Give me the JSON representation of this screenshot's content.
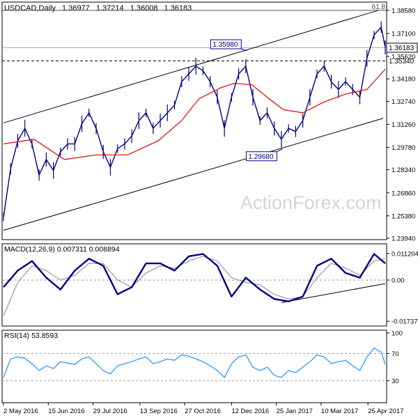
{
  "chart_data": [
    {
      "type": "line",
      "panel": "price",
      "header": {
        "symbol": "USDCAD,Daily",
        "open": "1.36977",
        "high": "1.37214",
        "low": "1.36008",
        "close": "1.36183"
      },
      "watermark": "ActionForex.com",
      "ylim": [
        1.2394,
        1.3898
      ],
      "y_ticks": [
        "1.38580",
        "1.37100",
        "1.35620",
        "1.34180",
        "1.32740",
        "1.31260",
        "1.29780",
        "1.28340",
        "1.26860",
        "1.25380",
        "1.23940"
      ],
      "x_ticks": [
        "2 May 2016",
        "15 Jun 2016",
        "29 Jul 2016",
        "13 Sep 2016",
        "27 Oct 2016",
        "12 Dec 2016",
        "25 Jan 2017",
        "10 Mar 2017",
        "25 Apr 2017"
      ],
      "last_price_label": "1.36183",
      "last_price": 1.36183,
      "support_label": "1.35340",
      "support_level": 1.3534,
      "fib_label": "61.8",
      "fib_level": 1.3858,
      "annotations": [
        {
          "label": "1.35980",
          "value": 1.3598,
          "date": "2016-12-27"
        },
        {
          "label": "1.29680",
          "value": 1.2968,
          "date": "2017-01-31"
        }
      ],
      "channel": {
        "upper": [
          [
            "2016-05-02",
            1.3135
          ],
          [
            "2017-05-05",
            1.3858
          ]
        ],
        "lower": [
          [
            "2016-05-02",
            1.2445
          ],
          [
            "2017-05-10",
            1.3165
          ]
        ]
      },
      "series": [
        {
          "kind": "close",
          "color": "#000080",
          "points": [
            [
              "2016-05-02",
              1.253
            ],
            [
              "2016-05-09",
              1.284
            ],
            [
              "2016-05-16",
              1.302
            ],
            [
              "2016-05-23",
              1.31
            ],
            [
              "2016-05-30",
              1.3
            ],
            [
              "2016-06-06",
              1.28
            ],
            [
              "2016-06-13",
              1.29
            ],
            [
              "2016-06-20",
              1.283
            ],
            [
              "2016-06-27",
              1.295
            ],
            [
              "2016-07-04",
              1.3
            ],
            [
              "2016-07-11",
              1.3
            ],
            [
              "2016-07-18",
              1.313
            ],
            [
              "2016-07-25",
              1.32
            ],
            [
              "2016-08-01",
              1.31
            ],
            [
              "2016-08-08",
              1.295
            ],
            [
              "2016-08-15",
              1.285
            ],
            [
              "2016-08-22",
              1.297
            ],
            [
              "2016-08-29",
              1.3
            ],
            [
              "2016-09-05",
              1.305
            ],
            [
              "2016-09-12",
              1.315
            ],
            [
              "2016-09-19",
              1.32
            ],
            [
              "2016-09-26",
              1.31
            ],
            [
              "2016-10-03",
              1.315
            ],
            [
              "2016-10-10",
              1.32
            ],
            [
              "2016-10-17",
              1.325
            ],
            [
              "2016-10-24",
              1.34
            ],
            [
              "2016-10-31",
              1.345
            ],
            [
              "2016-11-07",
              1.35
            ],
            [
              "2016-11-14",
              1.347
            ],
            [
              "2016-11-21",
              1.34
            ],
            [
              "2016-11-28",
              1.33
            ],
            [
              "2016-12-05",
              1.31
            ],
            [
              "2016-12-12",
              1.33
            ],
            [
              "2016-12-19",
              1.345
            ],
            [
              "2016-12-26",
              1.35
            ],
            [
              "2017-01-02",
              1.33
            ],
            [
              "2017-01-09",
              1.315
            ],
            [
              "2017-01-16",
              1.32
            ],
            [
              "2017-01-23",
              1.31
            ],
            [
              "2017-01-30",
              1.303
            ],
            [
              "2017-02-06",
              1.31
            ],
            [
              "2017-02-13",
              1.308
            ],
            [
              "2017-02-20",
              1.315
            ],
            [
              "2017-02-27",
              1.33
            ],
            [
              "2017-03-06",
              1.345
            ],
            [
              "2017-03-13",
              1.35
            ],
            [
              "2017-03-20",
              1.34
            ],
            [
              "2017-03-27",
              1.335
            ],
            [
              "2017-04-03",
              1.34
            ],
            [
              "2017-04-10",
              1.335
            ],
            [
              "2017-04-17",
              1.33
            ],
            [
              "2017-04-24",
              1.355
            ],
            [
              "2017-05-01",
              1.37
            ],
            [
              "2017-05-08",
              1.375
            ],
            [
              "2017-05-12",
              1.362
            ]
          ]
        },
        {
          "kind": "moving-average",
          "color": "#dd0000",
          "points": [
            [
              "2016-05-02",
              1.3
            ],
            [
              "2016-06-01",
              1.303
            ],
            [
              "2016-07-01",
              1.29
            ],
            [
              "2016-08-01",
              1.293
            ],
            [
              "2016-09-01",
              1.293
            ],
            [
              "2016-10-01",
              1.302
            ],
            [
              "2016-10-24",
              1.315
            ],
            [
              "2016-11-10",
              1.329
            ],
            [
              "2016-12-01",
              1.336
            ],
            [
              "2016-12-15",
              1.339
            ],
            [
              "2017-01-01",
              1.338
            ],
            [
              "2017-01-16",
              1.33
            ],
            [
              "2017-02-01",
              1.322
            ],
            [
              "2017-02-20",
              1.32
            ],
            [
              "2017-03-13",
              1.327
            ],
            [
              "2017-04-03",
              1.332
            ],
            [
              "2017-04-24",
              1.335
            ],
            [
              "2017-05-12",
              1.348
            ]
          ]
        }
      ]
    },
    {
      "type": "line",
      "panel": "macd",
      "label": "MACD(12,26,9) 0.007311 0.008894",
      "ylim": [
        -0.0185,
        0.0135
      ],
      "y_ticks": [
        "0.011204",
        "0.00",
        "-0.017371"
      ],
      "zero_level": 0,
      "trendline": [
        [
          "2017-01-30",
          -0.0095
        ],
        [
          "2017-05-12",
          -0.0015
        ]
      ],
      "series": [
        {
          "name": "MACD",
          "color": "#000080",
          "points": [
            [
              "2016-05-02",
              -0.003
            ],
            [
              "2016-05-16",
              0.004
            ],
            [
              "2016-05-30",
              0.008
            ],
            [
              "2016-06-13",
              0.001
            ],
            [
              "2016-06-27",
              -0.004
            ],
            [
              "2016-07-11",
              0.004
            ],
            [
              "2016-07-25",
              0.009
            ],
            [
              "2016-08-08",
              0.006
            ],
            [
              "2016-08-22",
              -0.006
            ],
            [
              "2016-09-05",
              -0.003
            ],
            [
              "2016-09-19",
              0.007
            ],
            [
              "2016-10-03",
              0.007
            ],
            [
              "2016-10-17",
              0.004
            ],
            [
              "2016-10-31",
              0.01
            ],
            [
              "2016-11-14",
              0.011
            ],
            [
              "2016-11-28",
              0.006
            ],
            [
              "2016-12-12",
              -0.007
            ],
            [
              "2016-12-26",
              0.001
            ],
            [
              "2017-01-09",
              -0.004
            ],
            [
              "2017-01-23",
              -0.008
            ],
            [
              "2017-02-06",
              -0.009
            ],
            [
              "2017-02-20",
              -0.007
            ],
            [
              "2017-03-06",
              0.006
            ],
            [
              "2017-03-20",
              0.009
            ],
            [
              "2017-04-03",
              0.003
            ],
            [
              "2017-04-17",
              0.001
            ],
            [
              "2017-05-01",
              0.011
            ],
            [
              "2017-05-12",
              0.007
            ]
          ]
        },
        {
          "name": "Signal",
          "color": "#999999",
          "points": [
            [
              "2016-05-02",
              -0.015
            ],
            [
              "2016-05-16",
              -0.001
            ],
            [
              "2016-05-30",
              0.006
            ],
            [
              "2016-06-13",
              0.004
            ],
            [
              "2016-06-27",
              0.0
            ],
            [
              "2016-07-11",
              0.002
            ],
            [
              "2016-07-25",
              0.007
            ],
            [
              "2016-08-08",
              0.007
            ],
            [
              "2016-08-22",
              0.0
            ],
            [
              "2016-09-05",
              -0.003
            ],
            [
              "2016-09-19",
              0.003
            ],
            [
              "2016-10-03",
              0.006
            ],
            [
              "2016-10-17",
              0.005
            ],
            [
              "2016-10-31",
              0.008
            ],
            [
              "2016-11-14",
              0.01
            ],
            [
              "2016-11-28",
              0.008
            ],
            [
              "2016-12-12",
              0.001
            ],
            [
              "2016-12-26",
              -0.001
            ],
            [
              "2017-01-09",
              -0.002
            ],
            [
              "2017-01-23",
              -0.006
            ],
            [
              "2017-02-06",
              -0.008
            ],
            [
              "2017-02-20",
              -0.007
            ],
            [
              "2017-03-06",
              0.001
            ],
            [
              "2017-03-20",
              0.007
            ],
            [
              "2017-04-03",
              0.005
            ],
            [
              "2017-04-17",
              0.002
            ],
            [
              "2017-05-01",
              0.008
            ],
            [
              "2017-05-12",
              0.009
            ]
          ]
        }
      ]
    },
    {
      "type": "line",
      "panel": "rsi",
      "label": "RSI(14) 53.8593",
      "ylim": [
        0,
        100
      ],
      "y_ticks": [
        "100",
        "70",
        "30"
      ],
      "guide_levels": [
        70,
        30
      ],
      "series": [
        {
          "name": "RSI",
          "color": "#1e90ff",
          "points": [
            [
              "2016-05-02",
              35
            ],
            [
              "2016-05-09",
              62
            ],
            [
              "2016-05-16",
              65
            ],
            [
              "2016-05-23",
              63
            ],
            [
              "2016-05-30",
              55
            ],
            [
              "2016-06-06",
              45
            ],
            [
              "2016-06-13",
              52
            ],
            [
              "2016-06-20",
              48
            ],
            [
              "2016-06-27",
              58
            ],
            [
              "2016-07-04",
              56
            ],
            [
              "2016-07-11",
              54
            ],
            [
              "2016-07-18",
              62
            ],
            [
              "2016-07-25",
              65
            ],
            [
              "2016-08-01",
              55
            ],
            [
              "2016-08-08",
              45
            ],
            [
              "2016-08-15",
              40
            ],
            [
              "2016-08-22",
              52
            ],
            [
              "2016-08-29",
              55
            ],
            [
              "2016-09-05",
              58
            ],
            [
              "2016-09-12",
              62
            ],
            [
              "2016-09-19",
              65
            ],
            [
              "2016-09-26",
              55
            ],
            [
              "2016-10-03",
              58
            ],
            [
              "2016-10-10",
              62
            ],
            [
              "2016-10-17",
              60
            ],
            [
              "2016-10-24",
              68
            ],
            [
              "2016-10-31",
              66
            ],
            [
              "2016-11-07",
              62
            ],
            [
              "2016-11-14",
              58
            ],
            [
              "2016-11-21",
              52
            ],
            [
              "2016-11-28",
              45
            ],
            [
              "2016-12-05",
              35
            ],
            [
              "2016-12-12",
              55
            ],
            [
              "2016-12-19",
              65
            ],
            [
              "2016-12-26",
              68
            ],
            [
              "2017-01-02",
              50
            ],
            [
              "2017-01-09",
              45
            ],
            [
              "2017-01-16",
              50
            ],
            [
              "2017-01-23",
              38
            ],
            [
              "2017-01-30",
              35
            ],
            [
              "2017-02-06",
              45
            ],
            [
              "2017-02-13",
              42
            ],
            [
              "2017-02-20",
              50
            ],
            [
              "2017-02-27",
              58
            ],
            [
              "2017-03-06",
              68
            ],
            [
              "2017-03-13",
              65
            ],
            [
              "2017-03-20",
              55
            ],
            [
              "2017-03-27",
              58
            ],
            [
              "2017-04-03",
              60
            ],
            [
              "2017-04-10",
              52
            ],
            [
              "2017-04-17",
              45
            ],
            [
              "2017-04-24",
              65
            ],
            [
              "2017-05-01",
              78
            ],
            [
              "2017-05-08",
              72
            ],
            [
              "2017-05-12",
              54
            ]
          ]
        }
      ]
    }
  ]
}
